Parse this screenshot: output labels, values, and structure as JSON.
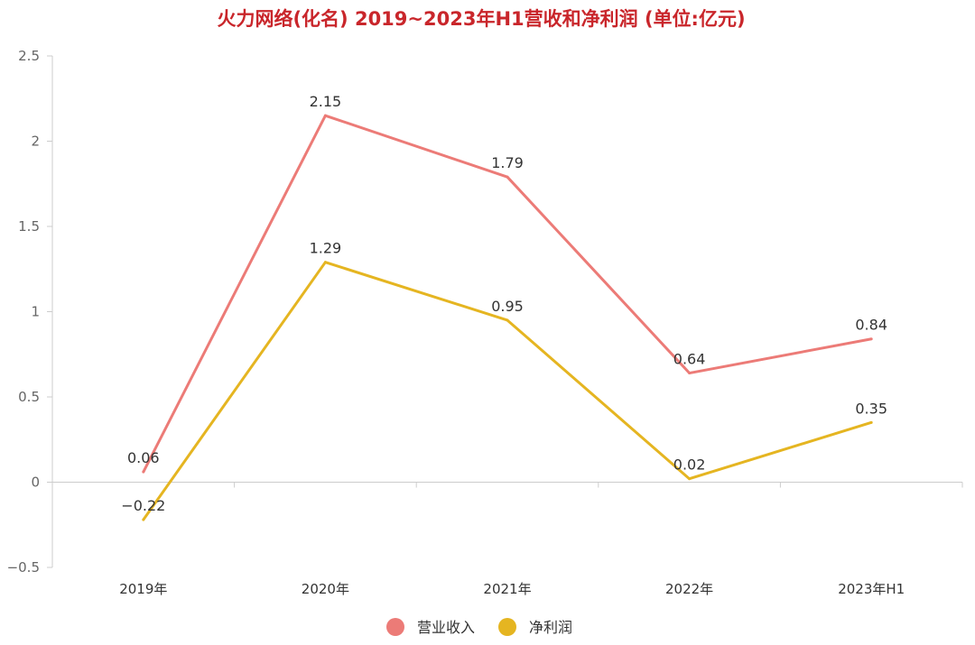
{
  "chart_data": {
    "type": "line",
    "title": "火力网络(化名) 2019~2023年H1营收和净利润 (单位:亿元)",
    "categories": [
      "2019年",
      "2020年",
      "2021年",
      "2022年",
      "2023年H1"
    ],
    "series": [
      {
        "name": "营业收入",
        "values": [
          0.06,
          2.15,
          1.79,
          0.64,
          0.84
        ],
        "labels": [
          "0.06",
          "2.15",
          "1.79",
          "0.64",
          "0.84"
        ],
        "color": "#ec7b77"
      },
      {
        "name": "净利润",
        "values": [
          -0.22,
          1.29,
          0.95,
          0.02,
          0.35
        ],
        "labels": [
          "−0.22",
          "1.29",
          "0.95",
          "0.02",
          "0.35"
        ],
        "color": "#e5b521"
      }
    ],
    "y_ticks": [
      "2.5",
      "2",
      "1.5",
      "1",
      "0.5",
      "0",
      "−0.5"
    ],
    "ylim": [
      -0.5,
      2.5
    ],
    "grid": false,
    "legend_position": "bottom-center",
    "title_color": "#c9262b"
  }
}
